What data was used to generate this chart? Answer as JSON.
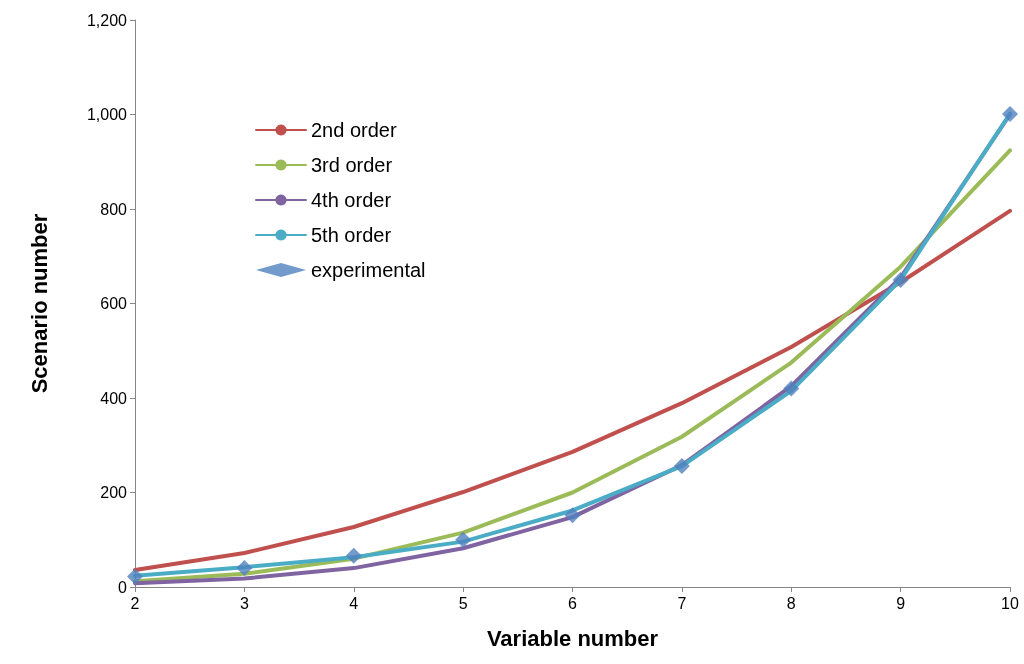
{
  "chart_data": {
    "type": "line",
    "xlabel": "Variable number",
    "ylabel": "Scenario number",
    "x": [
      2,
      3,
      4,
      5,
      6,
      7,
      8,
      9,
      10
    ],
    "series": [
      {
        "name": "2nd order",
        "color": "#c0504d",
        "values": [
          36,
          72,
          127,
          201,
          286,
          389,
          508,
          645,
          796
        ]
      },
      {
        "name": "3rd order",
        "color": "#9bbb59",
        "values": [
          12,
          28,
          60,
          115,
          200,
          318,
          475,
          678,
          924
        ]
      },
      {
        "name": "4th order",
        "color": "#8064a2",
        "values": [
          8,
          18,
          40,
          82,
          148,
          258,
          425,
          655,
          1000
        ]
      },
      {
        "name": "5th order",
        "color": "#4bacc6",
        "values": [
          24,
          42,
          63,
          96,
          162,
          256,
          415,
          650,
          1002
        ]
      },
      {
        "name": "experimental",
        "type": "scatter",
        "marker": "diamond",
        "color": "#4f81bd",
        "values": [
          22,
          40,
          66,
          100,
          152,
          256,
          420,
          650,
          1001
        ]
      }
    ],
    "xlim": [
      2,
      10
    ],
    "xticks": [
      2,
      3,
      4,
      5,
      6,
      7,
      8,
      9,
      10
    ],
    "ylim": [
      0,
      1200
    ],
    "yticks": [
      0,
      200,
      400,
      600,
      800,
      {
        "value": 1000,
        "label": "1,000"
      },
      {
        "value": 1200,
        "label": "1,200"
      }
    ],
    "grid": false,
    "legend": "top left",
    "marker": "none"
  }
}
